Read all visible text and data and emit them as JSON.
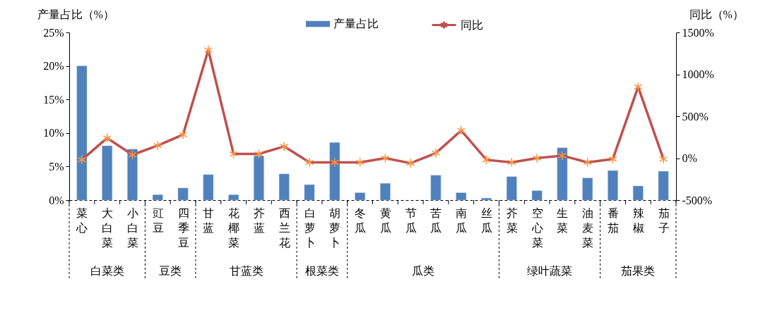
{
  "chart_data": {
    "type": "bar",
    "categories": [
      "菜心",
      "大白菜",
      "小白菜",
      "豇豆",
      "四季豆",
      "甘蓝",
      "花椰菜",
      "芥蓝",
      "西兰花",
      "白萝卜",
      "胡萝卜",
      "冬瓜",
      "黄瓜",
      "节瓜",
      "苦瓜",
      "南瓜",
      "丝瓜",
      "芥菜",
      "空心菜",
      "生菜",
      "油麦菜",
      "番茄",
      "辣椒",
      "茄子"
    ],
    "ylabel": "产量占比（%）",
    "y2label": "同比（%）",
    "ylim": [
      0,
      25
    ],
    "yticks": [
      {
        "value": 0,
        "label": "0%"
      },
      {
        "value": 5,
        "label": "5%"
      },
      {
        "value": 10,
        "label": "10%"
      },
      {
        "value": 15,
        "label": "15%"
      },
      {
        "value": 20,
        "label": "20%"
      },
      {
        "value": 25,
        "label": "25%"
      }
    ],
    "y2lim": [
      -500,
      1500
    ],
    "y2ticks": [
      {
        "value": -500,
        "label": "-500%"
      },
      {
        "value": 0,
        "label": "0%"
      },
      {
        "value": 500,
        "label": "500%"
      },
      {
        "value": 1000,
        "label": "1000%"
      },
      {
        "value": 1500,
        "label": "1500%"
      }
    ],
    "series": [
      {
        "name": "产量占比",
        "color": "#4f81bd",
        "values": [
          20.0,
          8.1,
          7.6,
          0.8,
          1.8,
          3.8,
          0.8,
          6.6,
          3.9,
          2.3,
          8.6,
          1.1,
          2.5,
          null,
          3.7,
          1.1,
          0.3,
          3.5,
          1.4,
          7.8,
          3.3,
          4.4,
          2.1,
          4.3
        ]
      },
      {
        "name": "同比",
        "type": "line",
        "axis": "y2",
        "color": "#c0504d",
        "colors": [
          "#f79646",
          "#f79646",
          "#f79646",
          "#f79646",
          "#f79646",
          "#f79646",
          "#f79646",
          "#f79646",
          "#f79646",
          "#f79646",
          "#f79646",
          "#f79646",
          "#f79646",
          "#f79646",
          "#f79646",
          "#f79646",
          "#f79646",
          "#f79646",
          "#f79646",
          "#f79646",
          "#f79646",
          "#f79646",
          "#f79646",
          "#f79646"
        ],
        "values": [
          -20,
          240,
          40,
          150,
          280,
          1290,
          50,
          50,
          140,
          -50,
          -50,
          -50,
          0,
          -60,
          60,
          330,
          -20,
          -50,
          0,
          30,
          -50,
          -10,
          850,
          -10
        ]
      }
    ],
    "annotations": [
      "白菜类",
      "豆类",
      "甘蓝类",
      "根菜类",
      "瓜类",
      "绿叶蔬菜",
      "茄果类"
    ],
    "marker": "cross",
    "line_style": "solid",
    "legend": "top",
    "grid": false
  }
}
